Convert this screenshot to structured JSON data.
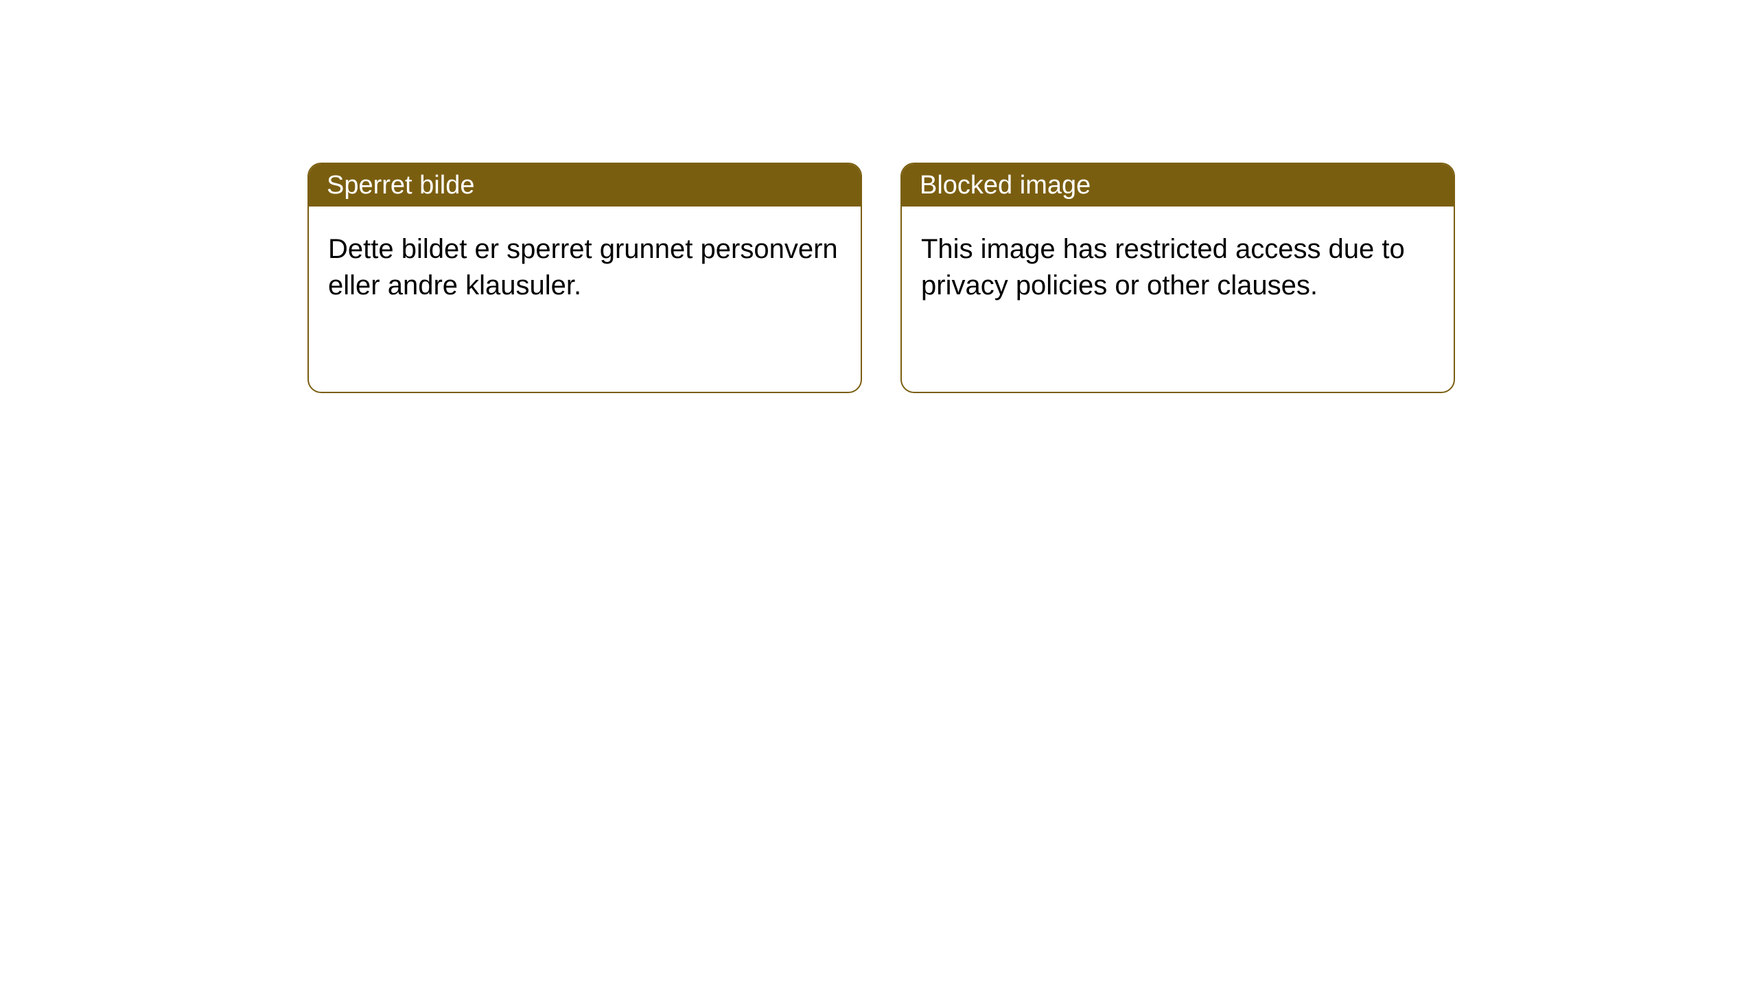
{
  "notices": [
    {
      "title": "Sperret bilde",
      "body": "Dette bildet er sperret grunnet personvern eller andre klausuler."
    },
    {
      "title": "Blocked image",
      "body": "This image has restricted access due to privacy policies or other clauses."
    }
  ],
  "style": {
    "header_bg": "#7a5e10",
    "header_text_color": "#ffffff",
    "border_color": "#7a5e10",
    "body_bg": "#ffffff",
    "body_text_color": "#000000",
    "border_radius": 20,
    "title_fontsize": 38,
    "body_fontsize": 40
  }
}
